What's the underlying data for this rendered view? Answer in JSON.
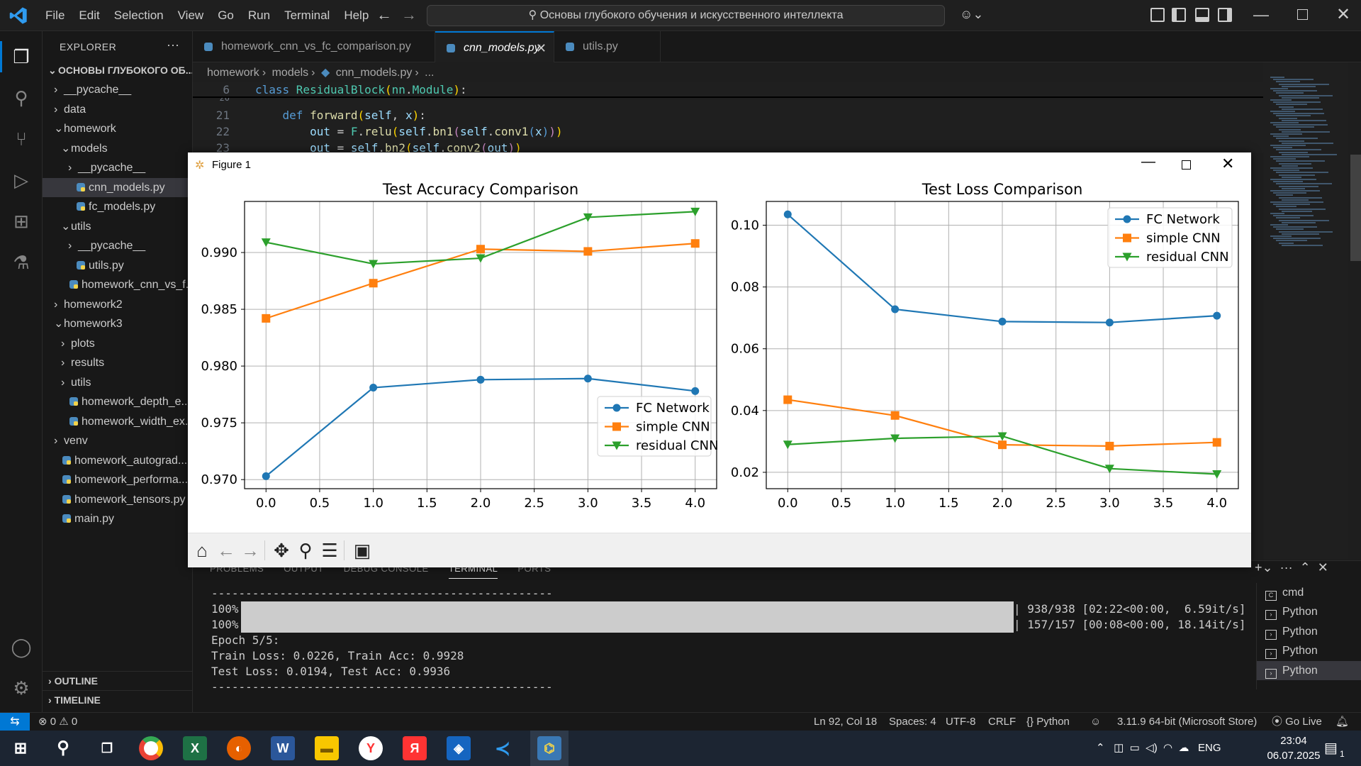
{
  "title_bar": {
    "menu": [
      "File",
      "Edit",
      "Selection",
      "View",
      "Go",
      "Run",
      "Terminal",
      "Help"
    ],
    "search_text": "Основы глубокого обучения и искусственного интеллекта"
  },
  "explorer": {
    "title": "EXPLORER",
    "root": "ОСНОВЫ ГЛУБОКОГО ОБ...",
    "items": [
      {
        "label": "__pycache__",
        "type": "folder",
        "open": false,
        "depth": 1
      },
      {
        "label": "data",
        "type": "folder",
        "open": false,
        "depth": 1
      },
      {
        "label": "homework",
        "type": "folder",
        "open": true,
        "depth": 1
      },
      {
        "label": "models",
        "type": "folder",
        "open": true,
        "depth": 2
      },
      {
        "label": "__pycache__",
        "type": "folder",
        "open": false,
        "depth": 3
      },
      {
        "label": "cnn_models.py",
        "type": "file",
        "depth": 3,
        "selected": true
      },
      {
        "label": "fc_models.py",
        "type": "file",
        "depth": 3
      },
      {
        "label": "utils",
        "type": "folder",
        "open": true,
        "depth": 2
      },
      {
        "label": "__pycache__",
        "type": "folder",
        "open": false,
        "depth": 3
      },
      {
        "label": "utils.py",
        "type": "file",
        "depth": 3
      },
      {
        "label": "homework_cnn_vs_f...",
        "type": "file",
        "depth": 2
      },
      {
        "label": "homework2",
        "type": "folder",
        "open": false,
        "depth": 1
      },
      {
        "label": "homework3",
        "type": "folder",
        "open": true,
        "depth": 1
      },
      {
        "label": "plots",
        "type": "folder",
        "open": false,
        "depth": 2
      },
      {
        "label": "results",
        "type": "folder",
        "open": false,
        "depth": 2
      },
      {
        "label": "utils",
        "type": "folder",
        "open": false,
        "depth": 2
      },
      {
        "label": "homework_depth_e...",
        "type": "file",
        "depth": 2
      },
      {
        "label": "homework_width_ex...",
        "type": "file",
        "depth": 2
      },
      {
        "label": "venv",
        "type": "folder",
        "open": false,
        "depth": 1
      },
      {
        "label": "homework_autograd...",
        "type": "file",
        "depth": 1
      },
      {
        "label": "homework_performa...",
        "type": "file",
        "depth": 1
      },
      {
        "label": "homework_tensors.py",
        "type": "file",
        "depth": 1
      },
      {
        "label": "main.py",
        "type": "file",
        "depth": 1
      }
    ],
    "outline": "OUTLINE",
    "timeline": "TIMELINE"
  },
  "tabs": [
    {
      "label": "homework_cnn_vs_fc_comparison.py",
      "active": false
    },
    {
      "label": "cnn_models.py",
      "active": true
    },
    {
      "label": "utils.py",
      "active": false
    }
  ],
  "breadcrumb": [
    "homework",
    "models",
    "cnn_models.py",
    "..."
  ],
  "code": {
    "sticky_line_no": "6",
    "sticky_line": "class ResidualBlock(nn.Module):",
    "partial_line_no": "20",
    "lines": [
      {
        "no": "21",
        "text": "    def forward(self, x):"
      },
      {
        "no": "22",
        "text": "        out = F.relu(self.bn1(self.conv1(x)))"
      },
      {
        "no": "23",
        "text": "        out = self.bn2(self.conv2(out))"
      }
    ]
  },
  "figure": {
    "window_title": "Figure 1"
  },
  "chart_data": [
    {
      "type": "line",
      "title": "Test Accuracy Comparison",
      "xlabel": "",
      "ylabel": "",
      "x": [
        0.0,
        1.0,
        2.0,
        3.0,
        4.0
      ],
      "xlim": [
        -0.2,
        4.2
      ],
      "ylim": [
        0.9692,
        0.9945
      ],
      "xticks": [
        "0.0",
        "0.5",
        "1.0",
        "1.5",
        "2.0",
        "2.5",
        "3.0",
        "3.5",
        "4.0"
      ],
      "yticks": [
        "0.970",
        "0.975",
        "0.980",
        "0.985",
        "0.990"
      ],
      "grid": true,
      "legend_position": "lower-right",
      "series": [
        {
          "name": "FC Network",
          "color": "#1f77b4",
          "marker": "circle",
          "values": [
            0.9703,
            0.9781,
            0.9788,
            0.9789,
            0.9778
          ]
        },
        {
          "name": "simple CNN",
          "color": "#ff7f0e",
          "marker": "square",
          "values": [
            0.9842,
            0.9873,
            0.9903,
            0.9901,
            0.9908
          ]
        },
        {
          "name": "residual CNN",
          "color": "#2ca02c",
          "marker": "triangle-down",
          "values": [
            0.9909,
            0.989,
            0.9895,
            0.9931,
            0.9936
          ]
        }
      ]
    },
    {
      "type": "line",
      "title": "Test Loss Comparison",
      "xlabel": "",
      "ylabel": "",
      "x": [
        0.0,
        1.0,
        2.0,
        3.0,
        4.0
      ],
      "xlim": [
        -0.2,
        4.2
      ],
      "ylim": [
        0.0147,
        0.1077
      ],
      "xticks": [
        "0.0",
        "0.5",
        "1.0",
        "1.5",
        "2.0",
        "2.5",
        "3.0",
        "3.5",
        "4.0"
      ],
      "yticks": [
        "0.02",
        "0.04",
        "0.06",
        "0.08",
        "0.10"
      ],
      "grid": true,
      "legend_position": "top-right",
      "series": [
        {
          "name": "FC Network",
          "color": "#1f77b4",
          "marker": "circle",
          "values": [
            0.1035,
            0.0728,
            0.0688,
            0.0685,
            0.0707
          ]
        },
        {
          "name": "simple CNN",
          "color": "#ff7f0e",
          "marker": "square",
          "values": [
            0.0435,
            0.0384,
            0.0289,
            0.0285,
            0.0297
          ]
        },
        {
          "name": "residual CNN",
          "color": "#2ca02c",
          "marker": "triangle-down",
          "values": [
            0.029,
            0.031,
            0.0317,
            0.0212,
            0.0194
          ]
        }
      ]
    }
  ],
  "panel": {
    "tabs": [
      "PROBLEMS",
      "OUTPUT",
      "DEBUG CONSOLE",
      "TERMINAL",
      "PORTS"
    ],
    "active_tab": "TERMINAL",
    "terminal": {
      "separator": "--------------------------------------------------",
      "progress1_pct": "100%|",
      "progress1_tail": "| 938/938 [02:22<00:00,  6.59it/s]",
      "progress2_pct": "100%|",
      "progress2_tail": "| 157/157 [00:08<00:00, 18.14it/s]",
      "epoch": "Epoch 5/5:",
      "train": "Train Loss: 0.0226, Train Acc: 0.9928",
      "test": "Test Loss: 0.0194, Test Acc: 0.9936",
      "separator2": "--------------------------------------------------"
    },
    "terminals": [
      "cmd",
      "Python",
      "Python",
      "Python",
      "Python"
    ]
  },
  "status_bar": {
    "errors": "0",
    "warnings": "0",
    "position": "Ln 92, Col 18",
    "spaces": "Spaces: 4",
    "encoding": "UTF-8",
    "eol": "CRLF",
    "language": "Python",
    "interpreter": "3.11.9 64-bit (Microsoft Store)",
    "golive": "Go Live"
  },
  "taskbar": {
    "lang": "ENG",
    "time": "23:04",
    "date": "06.07.2025",
    "notif_count": "1"
  },
  "colors": {
    "accent": "#0078d4",
    "editor_bg": "#1f1f1f",
    "side_bg": "#181818"
  }
}
